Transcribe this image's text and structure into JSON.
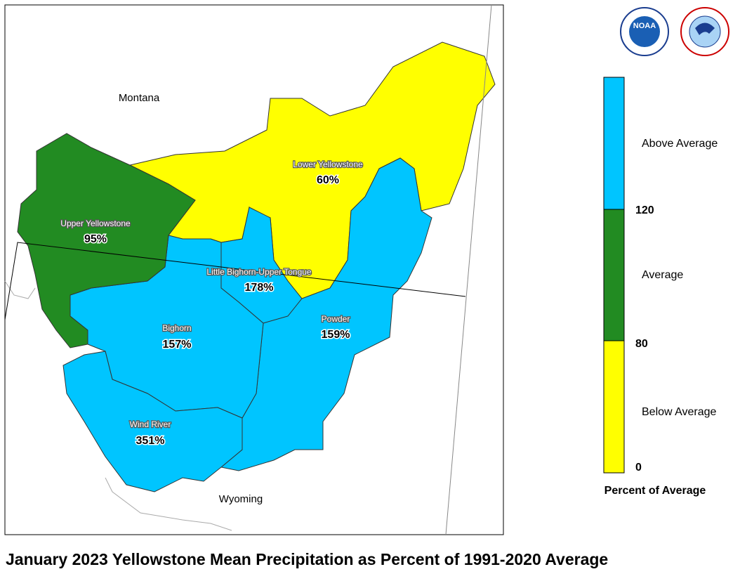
{
  "title": "January 2023 Yellowstone Mean Precipitation as Percent of 1991-2020 Average",
  "logo": {
    "noaa": "NOAA"
  },
  "map": {
    "regions": {
      "north": "Montana",
      "south": "Wyoming"
    },
    "basins": [
      {
        "name": "Upper Yellowstone",
        "percent": "95%"
      },
      {
        "name": "Lower Yellowstone",
        "percent": "60%"
      },
      {
        "name": "Little Bighorn-Upper Tongue",
        "percent": "178%"
      },
      {
        "name": "Bighorn",
        "percent": "157%"
      },
      {
        "name": "Powder",
        "percent": "159%"
      },
      {
        "name": "Wind River",
        "percent": "351%"
      }
    ]
  },
  "legend": {
    "title": "Percent of Average",
    "classes": [
      "Above Average",
      "Average",
      "Below Average"
    ],
    "ticks": [
      "120",
      "80",
      "0"
    ]
  }
}
